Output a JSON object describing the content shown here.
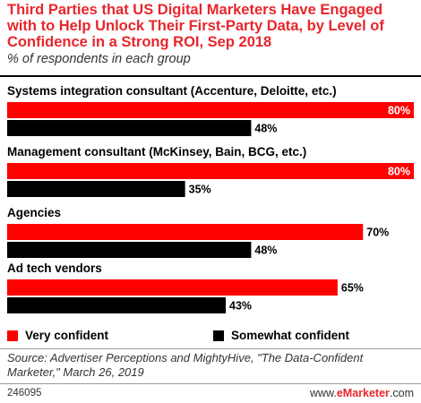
{
  "title": "Third Parties that US Digital Marketers Have Engaged with to Help Unlock Their First-Party Data, by Level of Confidence in a Strong ROI, Sep 2018",
  "subtitle": "% of respondents in each group",
  "source": "Source: Advertiser Perceptions and MightyHive, \"The Data-Confident Marketer,\" March 26, 2019",
  "footer": {
    "id": "246095",
    "brand_prefix": "www.",
    "brand_name": "eMarketer",
    "brand_suffix": ".com"
  },
  "colors": {
    "very": "#ff0000",
    "somewhat": "#000000",
    "accent": "#e8262c"
  },
  "chart_data": {
    "type": "bar",
    "orientation": "horizontal",
    "categories": [
      "Systems integration consultant (Accenture, Deloitte, etc.)",
      "Management consultant (McKinsey, Bain, BCG, etc.)",
      "Agencies",
      "Ad tech vendors"
    ],
    "series": [
      {
        "name": "Very confident",
        "values": [
          80,
          80,
          70,
          65
        ],
        "color": "#ff0000"
      },
      {
        "name": "Somewhat confident",
        "values": [
          48,
          35,
          48,
          43
        ],
        "color": "#000000"
      }
    ],
    "xlim": [
      0,
      80
    ],
    "value_suffix": "%",
    "grid": false,
    "legend_position": "bottom"
  }
}
